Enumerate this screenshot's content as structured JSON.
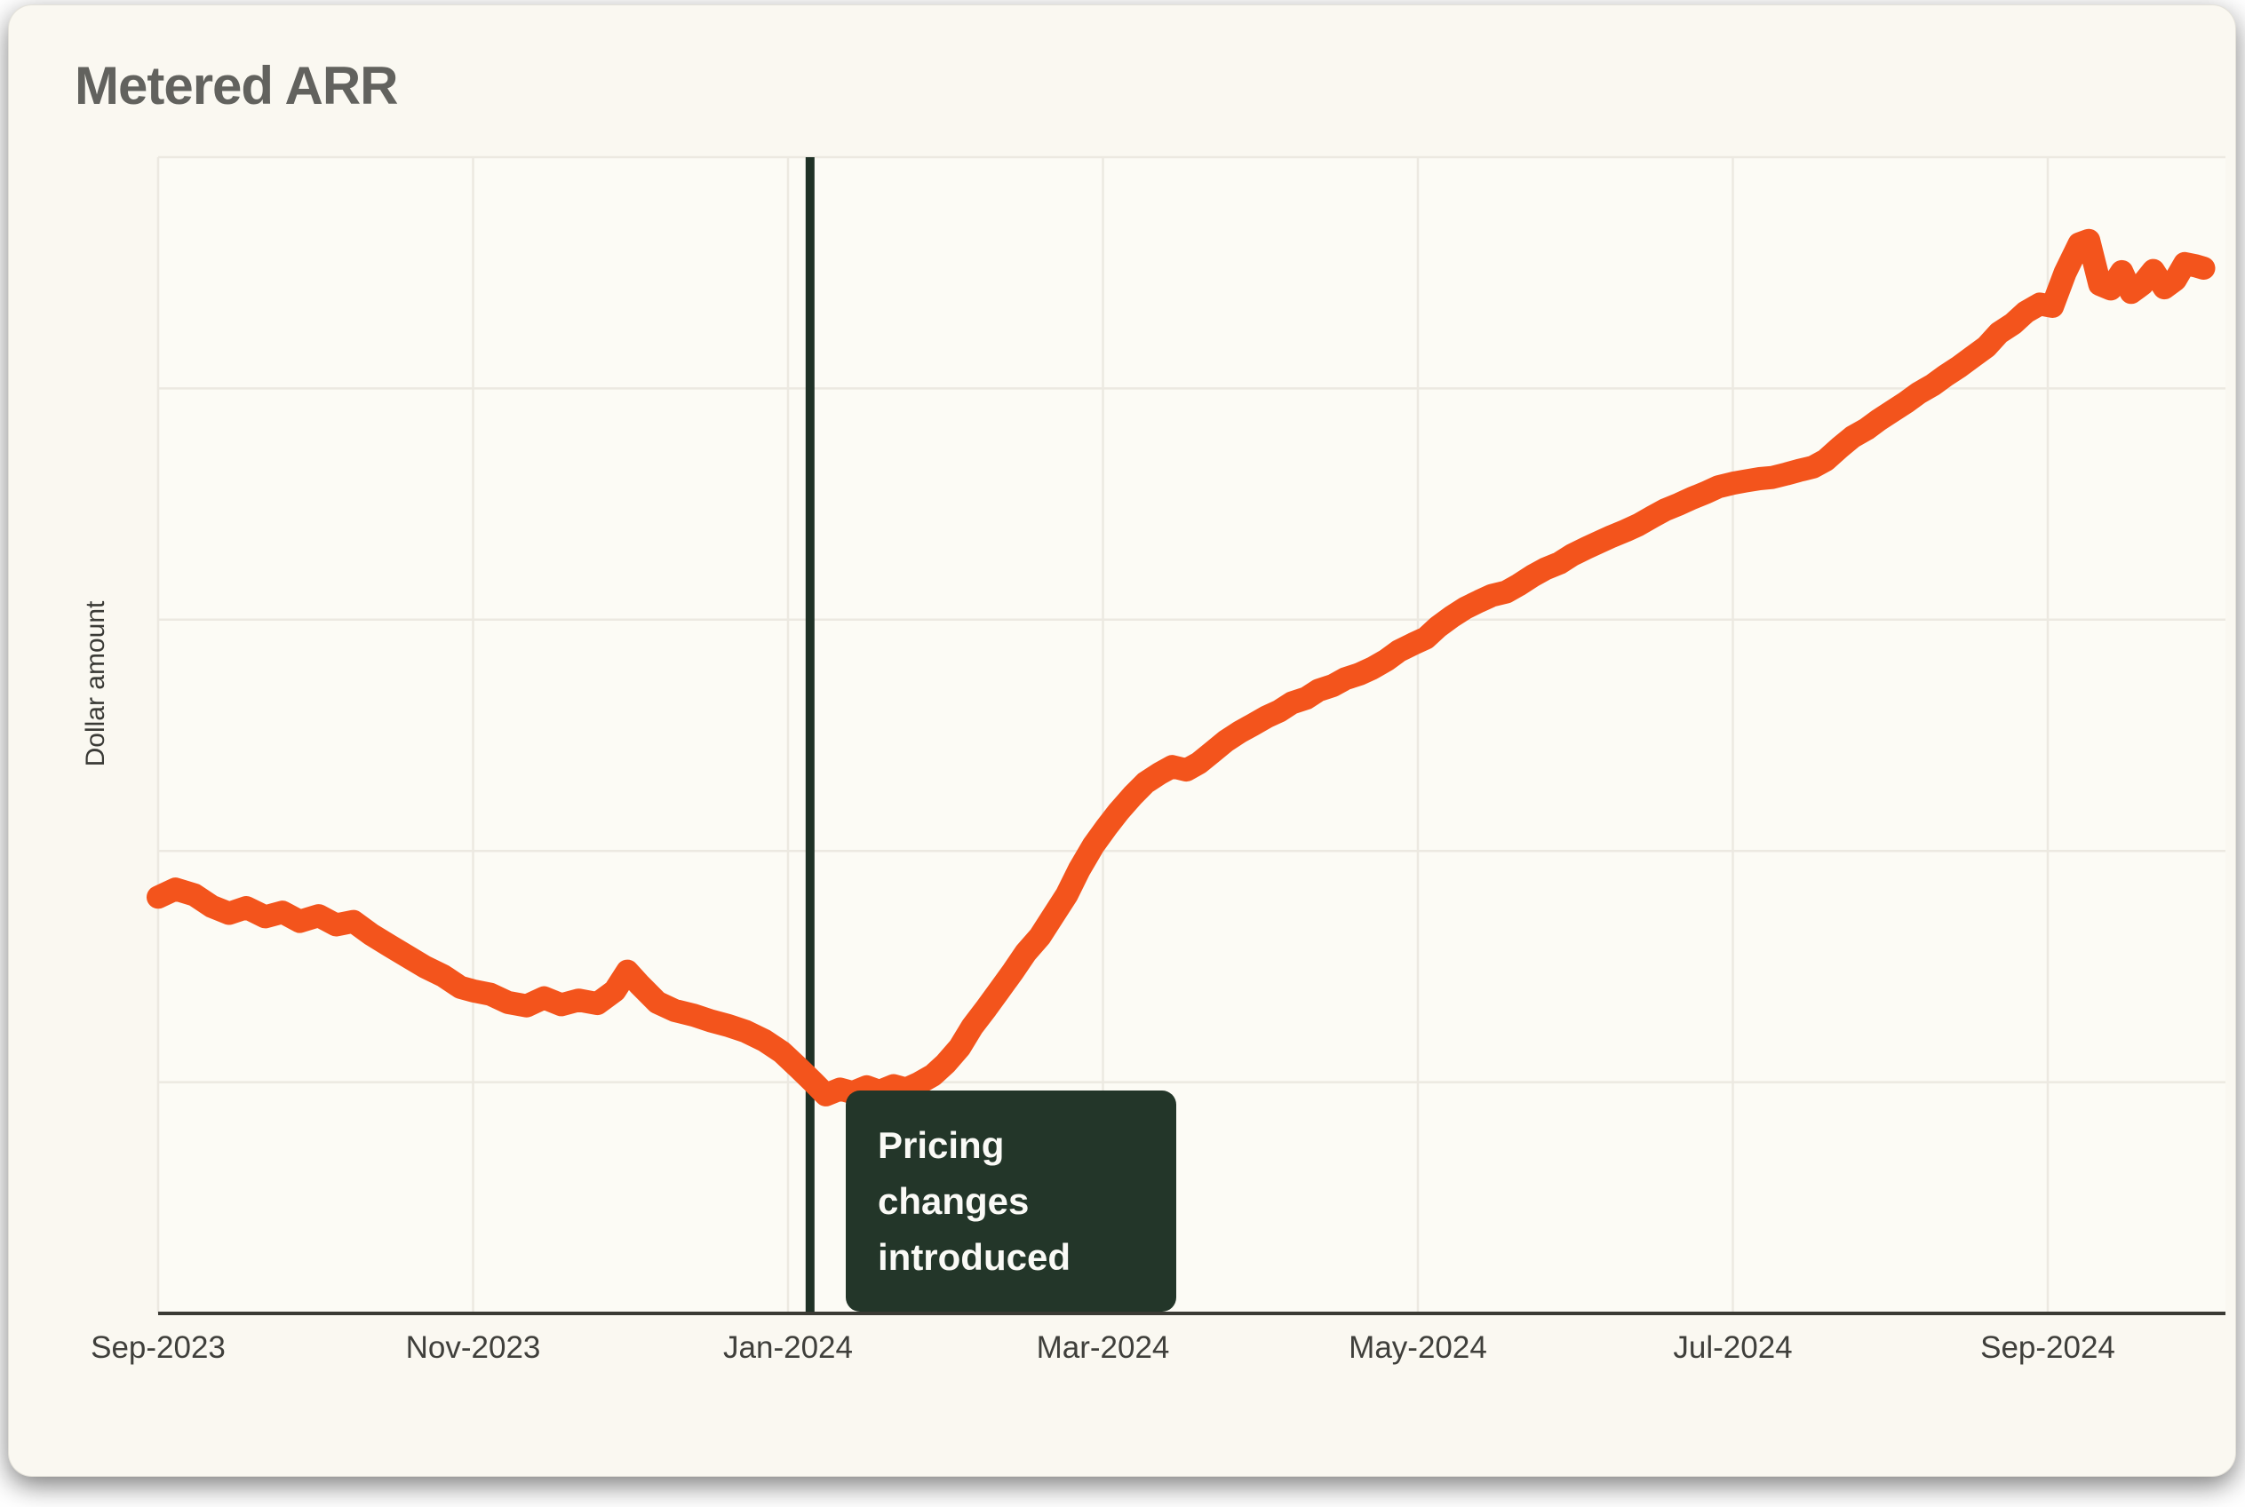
{
  "header": {
    "title": "Metered ARR"
  },
  "colors": {
    "card_bg": "#FAF8F1",
    "plot_bg": "#FCFBF5",
    "grid": "#ECE9E1",
    "axis": "#3A3A34",
    "title_text": "#62625E",
    "tick_text": "#3F3F3B",
    "line": "#F3541C",
    "marker_line": "#1F3126",
    "callout_bg": "#233629",
    "callout_text": "#FAFAF6"
  },
  "chart_data": {
    "type": "line",
    "title": "Metered ARR",
    "ylabel": "Dollar amount",
    "xlabel": "",
    "grid": true,
    "legend": "none",
    "x_axis": {
      "unit": "months since Sep-2023",
      "tick_labels": [
        "Sep-2023",
        "Nov-2023",
        "Jan-2024",
        "Mar-2024",
        "May-2024",
        "Jul-2024",
        "Sep-2024"
      ],
      "tick_months": [
        0,
        2,
        4,
        6,
        8,
        10,
        12
      ],
      "range_months": [
        0,
        13.13
      ]
    },
    "y_axis": {
      "label": "Dollar amount",
      "note": "no numeric tick labels shown; values below are percent of plot height",
      "range_pct": [
        0,
        100
      ]
    },
    "annotation": {
      "label": "Pricing changes introduced",
      "lines": [
        "Pricing changes",
        "introduced"
      ],
      "x_months": 4.14,
      "marker_color": "#1F3126",
      "box_color": "#233629",
      "text_color": "#FAFAF6"
    },
    "series": [
      {
        "name": "Metered ARR",
        "color": "#F3541C",
        "points": [
          [
            0.0,
            36.0
          ],
          [
            0.11,
            36.7
          ],
          [
            0.23,
            36.2
          ],
          [
            0.34,
            35.2
          ],
          [
            0.45,
            34.6
          ],
          [
            0.56,
            35.1
          ],
          [
            0.68,
            34.3
          ],
          [
            0.79,
            34.7
          ],
          [
            0.9,
            33.9
          ],
          [
            1.02,
            34.4
          ],
          [
            1.13,
            33.6
          ],
          [
            1.24,
            33.9
          ],
          [
            1.35,
            32.8
          ],
          [
            1.47,
            31.8
          ],
          [
            1.58,
            30.9
          ],
          [
            1.69,
            30.0
          ],
          [
            1.81,
            29.2
          ],
          [
            1.92,
            28.2
          ],
          [
            2.0,
            27.9
          ],
          [
            2.11,
            27.6
          ],
          [
            2.22,
            26.9
          ],
          [
            2.34,
            26.6
          ],
          [
            2.45,
            27.3
          ],
          [
            2.56,
            26.7
          ],
          [
            2.67,
            27.1
          ],
          [
            2.79,
            26.8
          ],
          [
            2.9,
            27.9
          ],
          [
            2.98,
            29.6
          ],
          [
            3.06,
            28.4
          ],
          [
            3.17,
            26.9
          ],
          [
            3.28,
            26.2
          ],
          [
            3.4,
            25.8
          ],
          [
            3.51,
            25.3
          ],
          [
            3.62,
            24.9
          ],
          [
            3.73,
            24.4
          ],
          [
            3.85,
            23.6
          ],
          [
            3.96,
            22.6
          ],
          [
            4.07,
            21.2
          ],
          [
            4.16,
            20.0
          ],
          [
            4.24,
            18.9
          ],
          [
            4.33,
            19.4
          ],
          [
            4.41,
            19.1
          ],
          [
            4.5,
            19.6
          ],
          [
            4.58,
            19.2
          ],
          [
            4.67,
            19.7
          ],
          [
            4.75,
            19.4
          ],
          [
            4.83,
            19.9
          ],
          [
            4.92,
            20.6
          ],
          [
            5.0,
            21.6
          ],
          [
            5.09,
            23.0
          ],
          [
            5.17,
            24.8
          ],
          [
            5.26,
            26.4
          ],
          [
            5.34,
            27.9
          ],
          [
            5.43,
            29.6
          ],
          [
            5.51,
            31.2
          ],
          [
            5.6,
            32.6
          ],
          [
            5.68,
            34.3
          ],
          [
            5.77,
            36.2
          ],
          [
            5.85,
            38.4
          ],
          [
            5.94,
            40.5
          ],
          [
            6.02,
            42.0
          ],
          [
            6.1,
            43.4
          ],
          [
            6.19,
            44.8
          ],
          [
            6.27,
            45.9
          ],
          [
            6.36,
            46.7
          ],
          [
            6.44,
            47.3
          ],
          [
            6.53,
            47.0
          ],
          [
            6.61,
            47.6
          ],
          [
            6.7,
            48.6
          ],
          [
            6.78,
            49.5
          ],
          [
            6.87,
            50.3
          ],
          [
            6.95,
            50.9
          ],
          [
            7.04,
            51.6
          ],
          [
            7.12,
            52.1
          ],
          [
            7.2,
            52.8
          ],
          [
            7.29,
            53.2
          ],
          [
            7.37,
            53.9
          ],
          [
            7.46,
            54.3
          ],
          [
            7.54,
            54.9
          ],
          [
            7.63,
            55.3
          ],
          [
            7.71,
            55.8
          ],
          [
            7.8,
            56.5
          ],
          [
            7.88,
            57.3
          ],
          [
            7.97,
            57.9
          ],
          [
            8.05,
            58.4
          ],
          [
            8.13,
            59.4
          ],
          [
            8.22,
            60.3
          ],
          [
            8.3,
            61.0
          ],
          [
            8.39,
            61.6
          ],
          [
            8.47,
            62.1
          ],
          [
            8.56,
            62.4
          ],
          [
            8.64,
            63.0
          ],
          [
            8.73,
            63.8
          ],
          [
            8.81,
            64.4
          ],
          [
            8.9,
            64.9
          ],
          [
            8.98,
            65.6
          ],
          [
            9.07,
            66.2
          ],
          [
            9.15,
            66.7
          ],
          [
            9.23,
            67.2
          ],
          [
            9.32,
            67.7
          ],
          [
            9.4,
            68.2
          ],
          [
            9.49,
            68.9
          ],
          [
            9.57,
            69.5
          ],
          [
            9.66,
            70.0
          ],
          [
            9.74,
            70.5
          ],
          [
            9.83,
            71.0
          ],
          [
            9.91,
            71.5
          ],
          [
            10.0,
            71.8
          ],
          [
            10.08,
            72.0
          ],
          [
            10.17,
            72.2
          ],
          [
            10.25,
            72.3
          ],
          [
            10.34,
            72.6
          ],
          [
            10.42,
            72.9
          ],
          [
            10.51,
            73.2
          ],
          [
            10.59,
            73.8
          ],
          [
            10.68,
            74.9
          ],
          [
            10.76,
            75.8
          ],
          [
            10.85,
            76.5
          ],
          [
            10.93,
            77.3
          ],
          [
            11.01,
            78.0
          ],
          [
            11.1,
            78.8
          ],
          [
            11.18,
            79.6
          ],
          [
            11.27,
            80.3
          ],
          [
            11.35,
            81.1
          ],
          [
            11.44,
            81.9
          ],
          [
            11.52,
            82.7
          ],
          [
            11.61,
            83.6
          ],
          [
            11.69,
            84.8
          ],
          [
            11.78,
            85.6
          ],
          [
            11.86,
            86.6
          ],
          [
            11.95,
            87.3
          ],
          [
            12.03,
            87.1
          ],
          [
            12.11,
            90.0
          ],
          [
            12.2,
            92.5
          ],
          [
            12.26,
            92.8
          ],
          [
            12.33,
            89.0
          ],
          [
            12.4,
            88.6
          ],
          [
            12.47,
            90.1
          ],
          [
            12.53,
            88.3
          ],
          [
            12.6,
            89.0
          ],
          [
            12.67,
            90.2
          ],
          [
            12.74,
            88.7
          ],
          [
            12.81,
            89.4
          ],
          [
            12.87,
            90.8
          ],
          [
            12.94,
            90.6
          ],
          [
            12.99,
            90.4
          ]
        ]
      }
    ]
  }
}
